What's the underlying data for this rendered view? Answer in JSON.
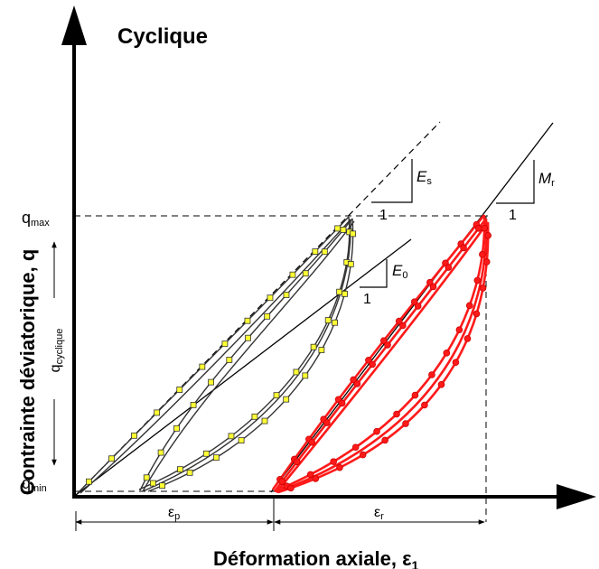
{
  "title": "Cyclique",
  "axes": {
    "x_label_main": "Déformation axiale, ε",
    "x_label_sub": "1",
    "y_label": "Contrainte déviatorique, q"
  },
  "levels": {
    "q_max_main": "q",
    "q_max_sub": "max",
    "q_min_main": "q",
    "q_min_sub": "min",
    "q_cyclic_main": "q",
    "q_cyclic_sub": "cyclique"
  },
  "strains": {
    "eps_p_main": "ε",
    "eps_p_sub": "p",
    "eps_r_main": "ε",
    "eps_r_sub": "r"
  },
  "slopes": {
    "Es_main": "E",
    "Es_sub": "s",
    "E0_main": "E",
    "E0_sub": "0",
    "Mr_main": "M",
    "Mr_sub": "r",
    "unit": "1"
  },
  "colors": {
    "yellow_marker": "#ffff33",
    "red_loops": "#ff1a1a",
    "axis": "#000000"
  }
}
